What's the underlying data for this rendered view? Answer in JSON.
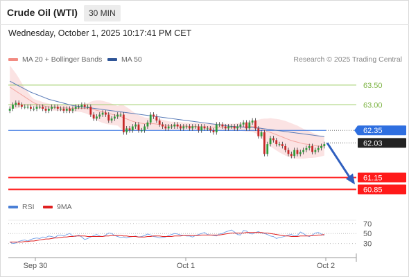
{
  "header": {
    "instrument": "Crude Oil (WTI)",
    "timeframe": "30 MIN"
  },
  "datetime": "Wednesday, October 1, 2025 10:17:41 PM CET",
  "legend": {
    "items": [
      {
        "label": "MA 20 + Bollinger Bands",
        "color": "#f28b82"
      },
      {
        "label": "MA 50",
        "color": "#2f5597"
      }
    ],
    "credit": "Research © 2025 Trading Central"
  },
  "rsi_legend": [
    {
      "label": "RSI",
      "color": "#4a7fd6"
    },
    {
      "label": "9MA",
      "color": "#e02020"
    }
  ],
  "colors": {
    "up": "#2e9b3a",
    "down": "#c62828",
    "bb_fill": "#fbe3e3",
    "current": "#2f6fe0",
    "support": "#ff1a1a",
    "resistance": "#9ccc65"
  },
  "chart_data": [
    {
      "type": "candlestick",
      "title": "Crude Oil (WTI)",
      "timeframe": "30 MIN",
      "x_ticks": [
        "Sep 30",
        "Oct 1",
        "Oct 2"
      ],
      "ylim": [
        60.7,
        63.85
      ],
      "levels": [
        {
          "label": "63.50",
          "value": 63.5,
          "kind": "resistance"
        },
        {
          "label": "63.00",
          "value": 63.0,
          "kind": "resistance"
        },
        {
          "label": "62.35",
          "value": 62.35,
          "kind": "current"
        },
        {
          "label": "62.03",
          "value": 62.03,
          "kind": "pivot"
        },
        {
          "label": "61.15",
          "value": 61.15,
          "kind": "support"
        },
        {
          "label": "60.85",
          "value": 60.85,
          "kind": "support"
        }
      ],
      "forecast": {
        "from": 62.03,
        "to": 61.15,
        "direction": "down"
      },
      "closes": [
        62.9,
        63.0,
        63.05,
        63.0,
        62.95,
        62.95,
        62.95,
        62.9,
        62.9,
        62.95,
        62.95,
        62.9,
        62.85,
        62.9,
        62.95,
        62.95,
        62.9,
        62.9,
        62.85,
        62.9,
        62.85,
        62.9,
        62.95,
        62.95,
        63.0,
        62.95,
        62.95,
        62.75,
        62.65,
        62.7,
        62.75,
        62.8,
        62.75,
        62.6,
        62.65,
        62.7,
        62.75,
        62.75,
        62.3,
        62.4,
        62.35,
        62.45,
        62.5,
        62.35,
        62.35,
        62.45,
        62.55,
        62.75,
        62.7,
        62.6,
        62.5,
        62.45,
        62.4,
        62.45,
        62.45,
        62.5,
        62.45,
        62.4,
        62.45,
        62.45,
        62.4,
        62.45,
        62.45,
        62.35,
        62.45,
        62.4,
        62.4,
        62.35,
        62.3,
        62.5,
        62.5,
        62.45,
        62.4,
        62.45,
        62.45,
        62.4,
        62.45,
        62.5,
        62.55,
        62.4,
        62.55,
        62.6,
        62.4,
        62.2,
        62.3,
        61.75,
        62.0,
        62.15,
        62.1,
        62.0,
        62.0,
        61.95,
        61.85,
        61.75,
        61.7,
        61.85,
        61.75,
        61.8,
        61.85,
        61.9,
        61.95,
        61.8,
        61.85,
        61.9,
        61.95,
        62.0
      ],
      "opens": [
        62.85,
        62.9,
        63.0,
        63.05,
        63.0,
        62.95,
        62.95,
        62.95,
        62.9,
        62.9,
        62.95,
        62.95,
        62.9,
        62.85,
        62.9,
        62.95,
        62.95,
        62.9,
        62.9,
        62.85,
        62.9,
        62.85,
        62.9,
        62.95,
        62.95,
        63.0,
        62.95,
        62.95,
        62.75,
        62.65,
        62.7,
        62.75,
        62.8,
        62.75,
        62.6,
        62.65,
        62.7,
        62.75,
        62.75,
        62.3,
        62.4,
        62.35,
        62.45,
        62.5,
        62.35,
        62.35,
        62.45,
        62.55,
        62.75,
        62.7,
        62.6,
        62.5,
        62.45,
        62.4,
        62.45,
        62.45,
        62.5,
        62.45,
        62.4,
        62.45,
        62.45,
        62.4,
        62.45,
        62.45,
        62.35,
        62.45,
        62.4,
        62.4,
        62.35,
        62.3,
        62.5,
        62.5,
        62.45,
        62.4,
        62.45,
        62.45,
        62.4,
        62.45,
        62.5,
        62.55,
        62.4,
        62.55,
        62.6,
        62.4,
        62.2,
        62.3,
        61.75,
        62.0,
        62.15,
        62.1,
        62.0,
        62.0,
        61.95,
        61.85,
        61.75,
        61.7,
        61.85,
        61.75,
        61.8,
        61.85,
        61.9,
        61.95,
        61.8,
        61.85,
        61.9,
        61.95
      ],
      "ma20": [
        63.45,
        63.4,
        63.35,
        63.3,
        63.25,
        63.2,
        63.15,
        63.1,
        63.05,
        63.02,
        63.0,
        62.98,
        62.96,
        62.95,
        62.94,
        62.93,
        62.93,
        62.92,
        62.92,
        62.92,
        62.91,
        62.91,
        62.91,
        62.91,
        62.91,
        62.91,
        62.9,
        62.9,
        62.88,
        62.86,
        62.84,
        62.82,
        62.8,
        62.78,
        62.76,
        62.74,
        62.72,
        62.7,
        62.67,
        62.64,
        62.61,
        62.58,
        62.56,
        62.54,
        62.53,
        62.52,
        62.52,
        62.52,
        62.52,
        62.51,
        62.5,
        62.49,
        62.48,
        62.47,
        62.47,
        62.47,
        62.47,
        62.46,
        62.46,
        62.46,
        62.45,
        62.45,
        62.45,
        62.44,
        62.44,
        62.44,
        62.43,
        62.43,
        62.43,
        62.43,
        62.43,
        62.43,
        62.43,
        62.43,
        62.43,
        62.43,
        62.43,
        62.44,
        62.44,
        62.44,
        62.45,
        62.45,
        62.44,
        62.42,
        62.4,
        62.35,
        62.32,
        62.3,
        62.27,
        62.24,
        62.21,
        62.18,
        62.15,
        62.12,
        62.09,
        62.07,
        62.05,
        62.03,
        62.01,
        62.0,
        61.99,
        61.97,
        61.96,
        61.95,
        61.95,
        61.95
      ],
      "ma50": [
        63.6,
        63.56,
        63.52,
        63.48,
        63.44,
        63.4,
        63.36,
        63.32,
        63.29,
        63.26,
        63.23,
        63.2,
        63.17,
        63.14,
        63.12,
        63.1,
        63.08,
        63.06,
        63.04,
        63.02,
        63.0,
        62.98,
        62.97,
        62.96,
        62.95,
        62.94,
        62.93,
        62.92,
        62.91,
        62.9,
        62.89,
        62.88,
        62.87,
        62.86,
        62.85,
        62.84,
        62.83,
        62.82,
        62.81,
        62.8,
        62.79,
        62.78,
        62.77,
        62.76,
        62.75,
        62.74,
        62.73,
        62.72,
        62.71,
        62.7,
        62.69,
        62.68,
        62.67,
        62.66,
        62.65,
        62.64,
        62.63,
        62.62,
        62.61,
        62.6,
        62.59,
        62.58,
        62.57,
        62.56,
        62.55,
        62.54,
        62.53,
        62.52,
        62.51,
        62.5,
        62.49,
        62.48,
        62.47,
        62.46,
        62.45,
        62.45,
        62.44,
        62.44,
        62.43,
        62.43,
        62.42,
        62.42,
        62.41,
        62.41,
        62.4,
        62.39,
        62.38,
        62.37,
        62.36,
        62.35,
        62.34,
        62.33,
        62.32,
        62.31,
        62.3,
        62.29,
        62.28,
        62.27,
        62.26,
        62.25,
        62.24,
        62.23,
        62.22,
        62.21,
        62.2,
        62.19
      ],
      "bb_halfwidth": [
        0.55,
        0.5,
        0.45,
        0.38,
        0.3,
        0.22,
        0.18,
        0.12,
        0.1,
        0.1,
        0.1,
        0.09,
        0.09,
        0.08,
        0.08,
        0.08,
        0.08,
        0.08,
        0.08,
        0.08,
        0.08,
        0.08,
        0.08,
        0.09,
        0.1,
        0.12,
        0.14,
        0.18,
        0.22,
        0.25,
        0.27,
        0.28,
        0.28,
        0.28,
        0.27,
        0.26,
        0.25,
        0.3,
        0.32,
        0.3,
        0.28,
        0.25,
        0.22,
        0.2,
        0.18,
        0.16,
        0.15,
        0.16,
        0.16,
        0.15,
        0.14,
        0.13,
        0.12,
        0.11,
        0.1,
        0.1,
        0.1,
        0.1,
        0.09,
        0.09,
        0.09,
        0.09,
        0.09,
        0.09,
        0.09,
        0.09,
        0.09,
        0.09,
        0.09,
        0.09,
        0.09,
        0.09,
        0.09,
        0.09,
        0.09,
        0.09,
        0.1,
        0.1,
        0.11,
        0.12,
        0.13,
        0.14,
        0.16,
        0.2,
        0.24,
        0.3,
        0.33,
        0.36,
        0.38,
        0.4,
        0.42,
        0.43,
        0.44,
        0.44,
        0.44,
        0.43,
        0.42,
        0.4,
        0.38,
        0.36,
        0.34,
        0.32,
        0.3,
        0.28,
        0.26,
        0.24
      ]
    },
    {
      "type": "line",
      "title": "RSI",
      "y_ticks": [
        70,
        50,
        30
      ],
      "ylim": [
        10,
        85
      ],
      "series": [
        {
          "name": "RSI",
          "values": [
            33,
            30,
            31,
            34,
            36,
            37,
            35,
            38,
            40,
            41,
            40,
            43,
            42,
            45,
            44,
            42,
            46,
            47,
            45,
            48,
            50,
            45,
            44,
            47,
            43,
            38,
            40,
            43,
            46,
            48,
            45,
            44,
            47,
            51,
            50,
            46,
            44,
            42,
            43,
            41,
            43,
            44,
            45,
            43,
            44,
            46,
            49,
            47,
            44,
            43,
            41,
            42,
            43,
            46,
            48,
            50,
            49,
            47,
            46,
            45,
            45,
            43,
            46,
            48,
            50,
            52,
            48,
            47,
            46,
            45,
            49,
            50,
            53,
            55,
            57,
            53,
            48,
            47,
            56,
            55,
            50,
            49,
            52,
            54,
            51,
            50,
            48,
            45,
            44,
            40,
            42,
            43,
            45,
            47,
            48,
            45,
            46,
            53,
            50,
            46,
            44,
            47,
            51,
            52,
            49,
            46
          ]
        },
        {
          "name": "9MA",
          "values": [
            33,
            33,
            33,
            33,
            33,
            34,
            34,
            35,
            35,
            36,
            37,
            38,
            39,
            39,
            40,
            41,
            41,
            42,
            43,
            43,
            44,
            44,
            45,
            45,
            45,
            45,
            44,
            44,
            44,
            44,
            44,
            44,
            45,
            45,
            46,
            46,
            46,
            46,
            45,
            45,
            44,
            44,
            44,
            43,
            43,
            43,
            44,
            44,
            45,
            45,
            45,
            44,
            44,
            44,
            44,
            45,
            45,
            45,
            46,
            46,
            46,
            46,
            46,
            46,
            47,
            47,
            47,
            47,
            47,
            47,
            47,
            48,
            49,
            50,
            51,
            51,
            51,
            51,
            51,
            52,
            52,
            52,
            52,
            52,
            52,
            51,
            51,
            50,
            49,
            48,
            47,
            46,
            45,
            45,
            44,
            44,
            44,
            45,
            45,
            45,
            45,
            46,
            46,
            47,
            47,
            48
          ]
        }
      ]
    }
  ]
}
